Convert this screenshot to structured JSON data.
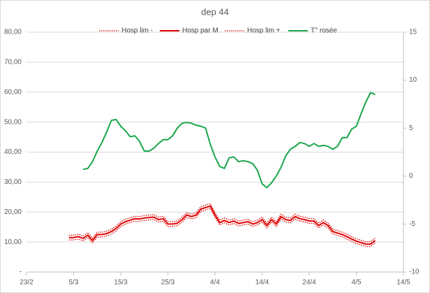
{
  "chart_data": {
    "type": "line",
    "title": "dep  44",
    "xlim": [
      0,
      80
    ],
    "xticks": [
      {
        "value": 0,
        "label": "23/2"
      },
      {
        "value": 10,
        "label": "5/3"
      },
      {
        "value": 20,
        "label": "15/3"
      },
      {
        "value": 30,
        "label": "25/3"
      },
      {
        "value": 40,
        "label": "4/4"
      },
      {
        "value": 50,
        "label": "14/4"
      },
      {
        "value": 60,
        "label": "24/4"
      },
      {
        "value": 70,
        "label": "4/5"
      },
      {
        "value": 80,
        "label": "14/5"
      }
    ],
    "ylim": [
      0,
      80
    ],
    "yticks": [
      {
        "value": 0,
        "label": "-"
      },
      {
        "value": 10,
        "label": "10,00"
      },
      {
        "value": 20,
        "label": "20,00"
      },
      {
        "value": 30,
        "label": "30,00"
      },
      {
        "value": 40,
        "label": "40,00"
      },
      {
        "value": 50,
        "label": "50,00"
      },
      {
        "value": 60,
        "label": "60,00"
      },
      {
        "value": 70,
        "label": "70,00"
      },
      {
        "value": 80,
        "label": "80,00"
      }
    ],
    "y2lim": [
      -10,
      15
    ],
    "y2ticks": [
      -10,
      -5,
      0,
      5,
      10,
      15
    ],
    "grid": true,
    "legend": "top",
    "series": [
      {
        "name": "Hosp lim -",
        "color": "#e00000",
        "dash": "dotted",
        "x": [
          9,
          10,
          11,
          12,
          13,
          14,
          15,
          16,
          17,
          18,
          19,
          20,
          21,
          22,
          23,
          24,
          25,
          26,
          27,
          28,
          29,
          30,
          31,
          32,
          33,
          34,
          35,
          36,
          37,
          38,
          39,
          40,
          41,
          42,
          43,
          44,
          45,
          46,
          47,
          48,
          49,
          50,
          51,
          52,
          53,
          54,
          55,
          56,
          57,
          58,
          59,
          60,
          61,
          62,
          63,
          64,
          65,
          66,
          67,
          68,
          69,
          70,
          71,
          72,
          73,
          74
        ],
        "values": [
          10.7,
          10.7,
          11.0,
          10.4,
          11.5,
          9.7,
          11.7,
          11.7,
          12.0,
          12.7,
          13.7,
          15.2,
          16.0,
          16.5,
          17.0,
          16.9,
          17.2,
          17.4,
          17.5,
          16.7,
          17.0,
          15.2,
          15.2,
          15.5,
          16.7,
          18.2,
          17.7,
          18.2,
          20.2,
          20.7,
          21.2,
          18.2,
          15.7,
          16.4,
          15.7,
          16.2,
          15.4,
          15.7,
          16.0,
          15.2,
          15.7,
          16.7,
          14.7,
          16.7,
          15.2,
          17.7,
          16.7,
          16.4,
          17.7,
          17.0,
          16.7,
          16.2,
          16.2,
          14.7,
          15.7,
          14.7,
          12.7,
          12.2,
          11.7,
          11.0,
          10.2,
          9.5,
          9.0,
          8.5,
          8.5,
          9.7
        ]
      },
      {
        "name": "Hosp par M",
        "color": "#e00000",
        "dash": "solid",
        "x": [
          9,
          10,
          11,
          12,
          13,
          14,
          15,
          16,
          17,
          18,
          19,
          20,
          21,
          22,
          23,
          24,
          25,
          26,
          27,
          28,
          29,
          30,
          31,
          32,
          33,
          34,
          35,
          36,
          37,
          38,
          39,
          40,
          41,
          42,
          43,
          44,
          45,
          46,
          47,
          48,
          49,
          50,
          51,
          52,
          53,
          54,
          55,
          56,
          57,
          58,
          59,
          60,
          61,
          62,
          63,
          64,
          65,
          66,
          67,
          68,
          69,
          70,
          71,
          72,
          73,
          74
        ],
        "values": [
          11.5,
          11.5,
          11.8,
          11.2,
          12.3,
          10.5,
          12.5,
          12.5,
          12.8,
          13.5,
          14.5,
          16.0,
          16.8,
          17.3,
          17.8,
          17.7,
          18.0,
          18.2,
          18.3,
          17.5,
          17.8,
          16.0,
          16.0,
          16.3,
          17.5,
          19.0,
          18.5,
          19.0,
          21.0,
          21.5,
          22.0,
          19.0,
          16.5,
          17.2,
          16.5,
          17.0,
          16.2,
          16.5,
          16.8,
          16.0,
          16.5,
          17.5,
          15.5,
          17.5,
          16.0,
          18.5,
          17.5,
          17.2,
          18.5,
          17.8,
          17.5,
          17.0,
          17.0,
          15.5,
          16.5,
          15.5,
          13.5,
          13.0,
          12.5,
          11.8,
          11.0,
          10.3,
          9.8,
          9.3,
          9.3,
          10.5
        ]
      },
      {
        "name": "Hosp lim +",
        "color": "#e00000",
        "dash": "dotted",
        "x": [
          9,
          10,
          11,
          12,
          13,
          14,
          15,
          16,
          17,
          18,
          19,
          20,
          21,
          22,
          23,
          24,
          25,
          26,
          27,
          28,
          29,
          30,
          31,
          32,
          33,
          34,
          35,
          36,
          37,
          38,
          39,
          40,
          41,
          42,
          43,
          44,
          45,
          46,
          47,
          48,
          49,
          50,
          51,
          52,
          53,
          54,
          55,
          56,
          57,
          58,
          59,
          60,
          61,
          62,
          63,
          64,
          65,
          66,
          67,
          68,
          69,
          70,
          71,
          72,
          73,
          74
        ],
        "values": [
          12.3,
          12.3,
          12.6,
          12.0,
          13.1,
          11.3,
          13.3,
          13.3,
          13.6,
          14.3,
          15.3,
          16.8,
          17.6,
          18.1,
          18.6,
          18.5,
          18.8,
          19.0,
          19.1,
          18.3,
          18.6,
          16.8,
          16.8,
          17.1,
          18.3,
          19.8,
          19.3,
          19.8,
          21.8,
          22.3,
          22.8,
          19.8,
          17.3,
          18.0,
          17.3,
          17.8,
          17.0,
          17.3,
          17.6,
          16.8,
          17.3,
          18.3,
          16.3,
          18.3,
          16.8,
          19.3,
          18.3,
          18.0,
          19.3,
          18.6,
          18.3,
          17.8,
          17.8,
          16.3,
          17.3,
          16.3,
          14.3,
          13.8,
          13.3,
          12.6,
          11.8,
          11.1,
          10.6,
          10.1,
          10.1,
          11.3
        ]
      },
      {
        "name": "T° rosée",
        "color": "#1aa64a",
        "dash": "solid",
        "axis": "y2",
        "x": [
          12,
          13,
          14,
          15,
          16,
          17,
          18,
          19,
          20,
          21,
          22,
          23,
          24,
          25,
          26,
          27,
          28,
          29,
          30,
          31,
          32,
          33,
          34,
          35,
          36,
          37,
          38,
          39,
          40,
          41,
          42,
          43,
          44,
          45,
          46,
          47,
          48,
          49,
          50,
          51,
          52,
          53,
          54,
          55,
          56,
          57,
          58,
          59,
          60,
          61,
          62,
          63,
          64,
          65,
          66,
          67,
          68,
          69,
          70,
          71,
          72,
          73,
          74
        ],
        "values": [
          0.7,
          0.8,
          1.5,
          2.6,
          3.5,
          4.6,
          5.8,
          5.9,
          5.2,
          4.7,
          4.1,
          4.2,
          3.6,
          2.6,
          2.6,
          2.9,
          3.4,
          3.8,
          3.8,
          4.2,
          5.0,
          5.5,
          5.6,
          5.5,
          5.3,
          5.2,
          5.0,
          3.3,
          2.0,
          1.0,
          0.8,
          1.9,
          2.0,
          1.5,
          1.6,
          1.5,
          1.3,
          0.6,
          -0.8,
          -1.2,
          -0.7,
          0,
          0.9,
          2.1,
          2.8,
          3.1,
          3.5,
          3.4,
          3.1,
          3.4,
          3.1,
          3.2,
          3.1,
          2.8,
          3.1,
          4.0,
          4.0,
          4.9,
          5.2,
          6.5,
          7.7,
          8.7,
          8.5
        ]
      }
    ]
  }
}
